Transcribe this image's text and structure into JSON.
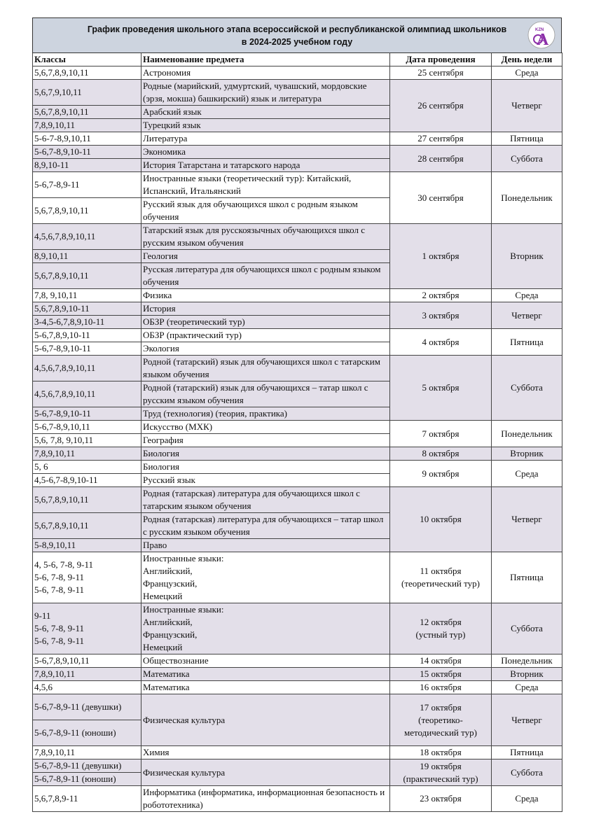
{
  "header": {
    "title_line1": "График проведения школьного этапа всероссийской и республиканской олимпиад школьников",
    "title_line2": "в 2024-2025 учебном году",
    "logo_text": "KZN"
  },
  "columns": [
    "Классы",
    "Наименование предмета",
    "Дата проведения",
    "День недели"
  ],
  "colors": {
    "header_bg": "#cdd4df",
    "shaded_row": "#e3dfe9",
    "logo": "#8b2fa8"
  },
  "groups": [
    {
      "date": "25 сентября",
      "day": "Среда",
      "shaded": false,
      "rows": [
        {
          "classes": "5,6,7,8,9,10,11",
          "subject": "Астрономия"
        }
      ]
    },
    {
      "date": "26 сентября",
      "day": "Четверг",
      "shaded": true,
      "rows": [
        {
          "classes": "5,6,7,9,10,11",
          "subject": "Родные (марийский, удмуртский, чувашский, мордовские (эрзя, мокша) башкирский) язык и литература"
        },
        {
          "classes": "5,6,7,8,9,10,11",
          "subject": "Арабский язык"
        },
        {
          "classes": "7,8,9,10,11",
          "subject": "Турецкий язык"
        }
      ]
    },
    {
      "date": "27 сентября",
      "day": "Пятница",
      "shaded": false,
      "rows": [
        {
          "classes": "5-6-7-8,9,10,11",
          "subject": "Литература"
        }
      ]
    },
    {
      "date": "28 сентября",
      "day": "Суббота",
      "shaded": true,
      "rows": [
        {
          "classes": "5-6,7-8,9,10-11",
          "subject": "Экономика"
        },
        {
          "classes": "8,9,10-11",
          "subject": "История Татарстана и татарского народа"
        }
      ]
    },
    {
      "date": "30 сентября",
      "day": "Понедельник",
      "shaded": false,
      "rows": [
        {
          "classes": "5-6,7-8,9-11",
          "subject": "Иностранные языки (теоретический тур): Китайский, Испанский, Итальянский"
        },
        {
          "classes": "5,6,7,8,9,10,11",
          "subject": "Русский язык для обучающихся школ с родным языком обучения"
        }
      ]
    },
    {
      "date": "1 октября",
      "day": "Вторник",
      "shaded": true,
      "rows": [
        {
          "classes": "4,5,6,7,8,9,10,11",
          "subject": "Татарский язык для русскоязычных обучающихся школ с русским языком обучения"
        },
        {
          "classes": "8,9,10,11",
          "subject": "Геология"
        },
        {
          "classes": "5,6,7,8,9,10,11",
          "subject": "Русская литература для обучающихся школ с родным языком обучения"
        }
      ]
    },
    {
      "date": "2 октября",
      "day": "Среда",
      "shaded": false,
      "rows": [
        {
          "classes": "7,8, 9,10,11",
          "subject": "Физика"
        }
      ]
    },
    {
      "date": "3 октября",
      "day": "Четверг",
      "shaded": true,
      "rows": [
        {
          "classes": "5,6,7,8,9,10-11",
          "subject": "История"
        },
        {
          "classes": "3-4,5-6,7,8,9,10-11",
          "subject": "ОБЗР (теоретический тур)"
        }
      ]
    },
    {
      "date": "4 октября",
      "day": "Пятница",
      "shaded": false,
      "rows": [
        {
          "classes": "5-6,7,8,9,10-11",
          "subject": "ОБЗР (практический тур)"
        },
        {
          "classes": "5-6,7-8,9,10-11",
          "subject": "Экология"
        }
      ]
    },
    {
      "date": "5 октября",
      "day": "Суббота",
      "shaded": true,
      "rows": [
        {
          "classes": "4,5,6,7,8,9,10,11",
          "subject": "Родной (татарский) язык для обучающихся школ с татарским языком обучения"
        },
        {
          "classes": "4,5,6,7,8,9,10,11",
          "subject": "Родной (татарский) язык для обучающихся – татар школ с русским языком обучения"
        },
        {
          "classes": "5-6,7-8,9,10-11",
          "subject": "Труд (технология) (теория, практика)"
        }
      ]
    },
    {
      "date": "7 октября",
      "day": "Понедельник",
      "shaded": false,
      "rows": [
        {
          "classes": "5-6,7-8,9,10,11",
          "subject": "Искусство (МХК)"
        },
        {
          "classes": "5,6, 7,8, 9,10,11",
          "subject": "География"
        }
      ]
    },
    {
      "date": "8 октября",
      "day": "Вторник",
      "shaded": true,
      "rows": [
        {
          "classes": "7,8,9,10,11",
          "subject": "Биология"
        }
      ]
    },
    {
      "date": "9 октября",
      "day": "Среда",
      "shaded": false,
      "rows": [
        {
          "classes": "5, 6",
          "subject": "Биология"
        },
        {
          "classes": "4,5-6,7-8,9,10-11",
          "subject": "Русский язык"
        }
      ]
    },
    {
      "date": "10 октября",
      "day": "Четверг",
      "shaded": true,
      "rows": [
        {
          "classes": "5,6,7,8,9,10,11",
          "subject": "Родная (татарская) литература для обучающихся школ с татарским языком обучения"
        },
        {
          "classes": "5,6,7,8,9,10,11",
          "subject": "Родная (татарская) литература для обучающихся – татар школ с русским языком обучения"
        },
        {
          "classes": "5-8,9,10,11",
          "subject": "Право"
        }
      ]
    },
    {
      "date": "11 октября\n(теоретический тур)",
      "day": "Пятница",
      "shaded": false,
      "rows": [
        {
          "classes": "4, 5-6, 7-8, 9-11\n5-6, 7-8, 9-11\n5-6, 7-8, 9-11",
          "subject": "Иностранные языки:\nАнглийский,\nФранцузский,\nНемецкий",
          "top_pad": true
        }
      ]
    },
    {
      "date": "12 октября\n(устный тур)",
      "day": "Суббота",
      "shaded": true,
      "rows": [
        {
          "classes": "9-11\n5-6, 7-8, 9-11\n5-6, 7-8, 9-11",
          "subject": "Иностранные языки:\nАнглийский,\nФранцузский,\nНемецкий",
          "top_pad": true
        }
      ]
    },
    {
      "date": "14 октября",
      "day": "Понедельник",
      "shaded": false,
      "rows": [
        {
          "classes": "5-6,7,8,9,10,11",
          "subject": "Обществознание"
        }
      ]
    },
    {
      "date": "15 октября",
      "day": "Вторник",
      "shaded": true,
      "rows": [
        {
          "classes": "7,8,9,10,11",
          "subject": "Математика"
        }
      ]
    },
    {
      "date": "16 октября",
      "day": "Среда",
      "shaded": false,
      "rows": [
        {
          "classes": "4,5,6",
          "subject": "Математика"
        }
      ]
    },
    {
      "date": "17 октября\n(теоретико-\nметодический тур)",
      "day": "Четверг",
      "shaded": true,
      "merged_subject": "Физическая культура",
      "rows": [
        {
          "classes": "5-6,7-8,9-11 (девушки)",
          "tall": true
        },
        {
          "classes": "5-6,7-8,9-11 (юноши)",
          "tall": true
        }
      ]
    },
    {
      "date": "18 октября",
      "day": "Пятница",
      "shaded": false,
      "rows": [
        {
          "classes": "7,8,9,10,11",
          "subject": "Химия"
        }
      ]
    },
    {
      "date": "19 октября\n(практический тур)",
      "day": "Суббота",
      "shaded": true,
      "merged_subject": "Физическая культура",
      "rows": [
        {
          "classes": "5-6,7-8,9-11 (девушки)"
        },
        {
          "classes": "5-6,7-8,9-11 (юноши)"
        }
      ]
    },
    {
      "date": "23 октября",
      "day": "Среда",
      "shaded": false,
      "rows": [
        {
          "classes": "5,6,7,8,9-11",
          "subject": "Информатика (информатика, информационная безопасность и робототехника)"
        }
      ]
    }
  ]
}
